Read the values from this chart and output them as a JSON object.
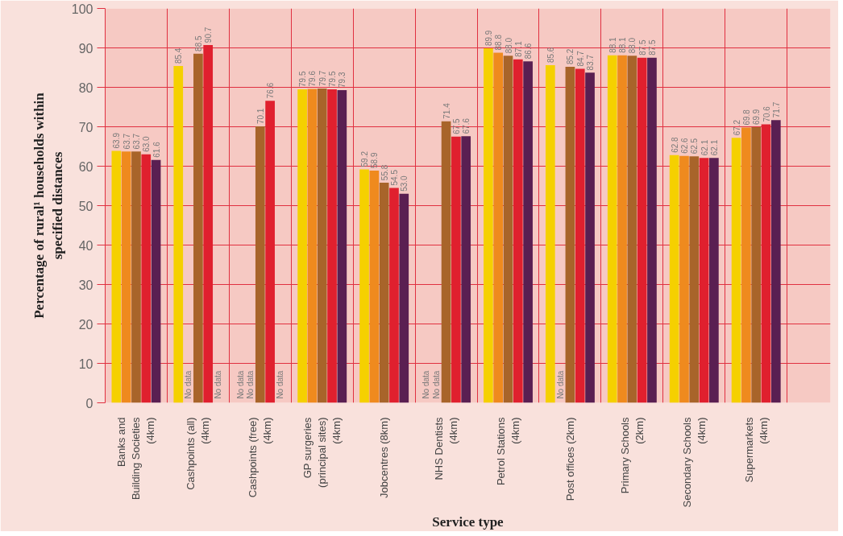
{
  "chart_data": {
    "type": "bar",
    "xlabel": "Service type",
    "ylabel": "Percentage of rural¹ households within\nspecified distances",
    "categories": [
      "Banks and\nBuilding Societies\n(4km)",
      "Cashpoints (all)\n(4km)",
      "Cashpoints (free)\n(4km)",
      "GP surgeries\n(principal sites)\n(4km)",
      "Jobcentres (8km)",
      "NHS Dentists\n(4km)",
      "Petrol Stations\n(4km)",
      "Post offices (2km)",
      "Primary Schools\n(2km)",
      "Secondary Schools\n(4km)",
      "Supermarkets\n(4km)"
    ],
    "series": [
      {
        "color": "#f5d000",
        "values": [
          63.9,
          85.4,
          null,
          79.5,
          59.2,
          null,
          89.9,
          85.6,
          88.1,
          62.8,
          67.2
        ],
        "value_labels": [
          "63.9",
          "85.4",
          "No data",
          "79.5",
          "59.2",
          "No data",
          "89.9",
          "85.6",
          "88.1",
          "62.8",
          "67.2"
        ]
      },
      {
        "color": "#ef8a1e",
        "values": [
          63.7,
          null,
          null,
          79.6,
          58.9,
          null,
          88.8,
          null,
          88.1,
          62.6,
          69.8
        ],
        "value_labels": [
          "63.7",
          "No data",
          "No data",
          "79.6",
          "58.9",
          "No data",
          "88.8",
          "No data",
          "88.1",
          "62.6",
          "69.8"
        ]
      },
      {
        "color": "#a8642a",
        "values": [
          63.7,
          88.5,
          70.1,
          79.7,
          55.8,
          71.4,
          88.0,
          85.2,
          88.0,
          62.5,
          69.9
        ],
        "value_labels": [
          "63.7",
          "88.5",
          "70.1",
          "79.7",
          "55.8",
          "71.4",
          "88.0",
          "85.2",
          "88.0",
          "62.5",
          "69.9"
        ]
      },
      {
        "color": "#e0202e",
        "values": [
          63.0,
          90.7,
          76.6,
          79.5,
          54.5,
          67.5,
          87.1,
          84.7,
          87.5,
          62.1,
          70.6
        ],
        "value_labels": [
          "63.0",
          "90.7",
          "76.6",
          "79.5",
          "54.5",
          "67.5",
          "87.1",
          "84.7",
          "87.5",
          "62.1",
          "70.6"
        ]
      },
      {
        "color": "#5a1f52",
        "values": [
          61.6,
          null,
          null,
          79.3,
          53.0,
          67.6,
          86.6,
          83.7,
          87.5,
          62.1,
          71.7
        ],
        "value_labels": [
          "61.6",
          "No data",
          "No data",
          "79.3",
          "53.0",
          "67.6",
          "86.6",
          "83.7",
          "87.5",
          "62.1",
          "71.7"
        ]
      }
    ],
    "ylim": [
      0,
      100
    ],
    "yticks": [
      0,
      10,
      20,
      30,
      40,
      50,
      60,
      70,
      80,
      90,
      100
    ],
    "grid": true
  }
}
